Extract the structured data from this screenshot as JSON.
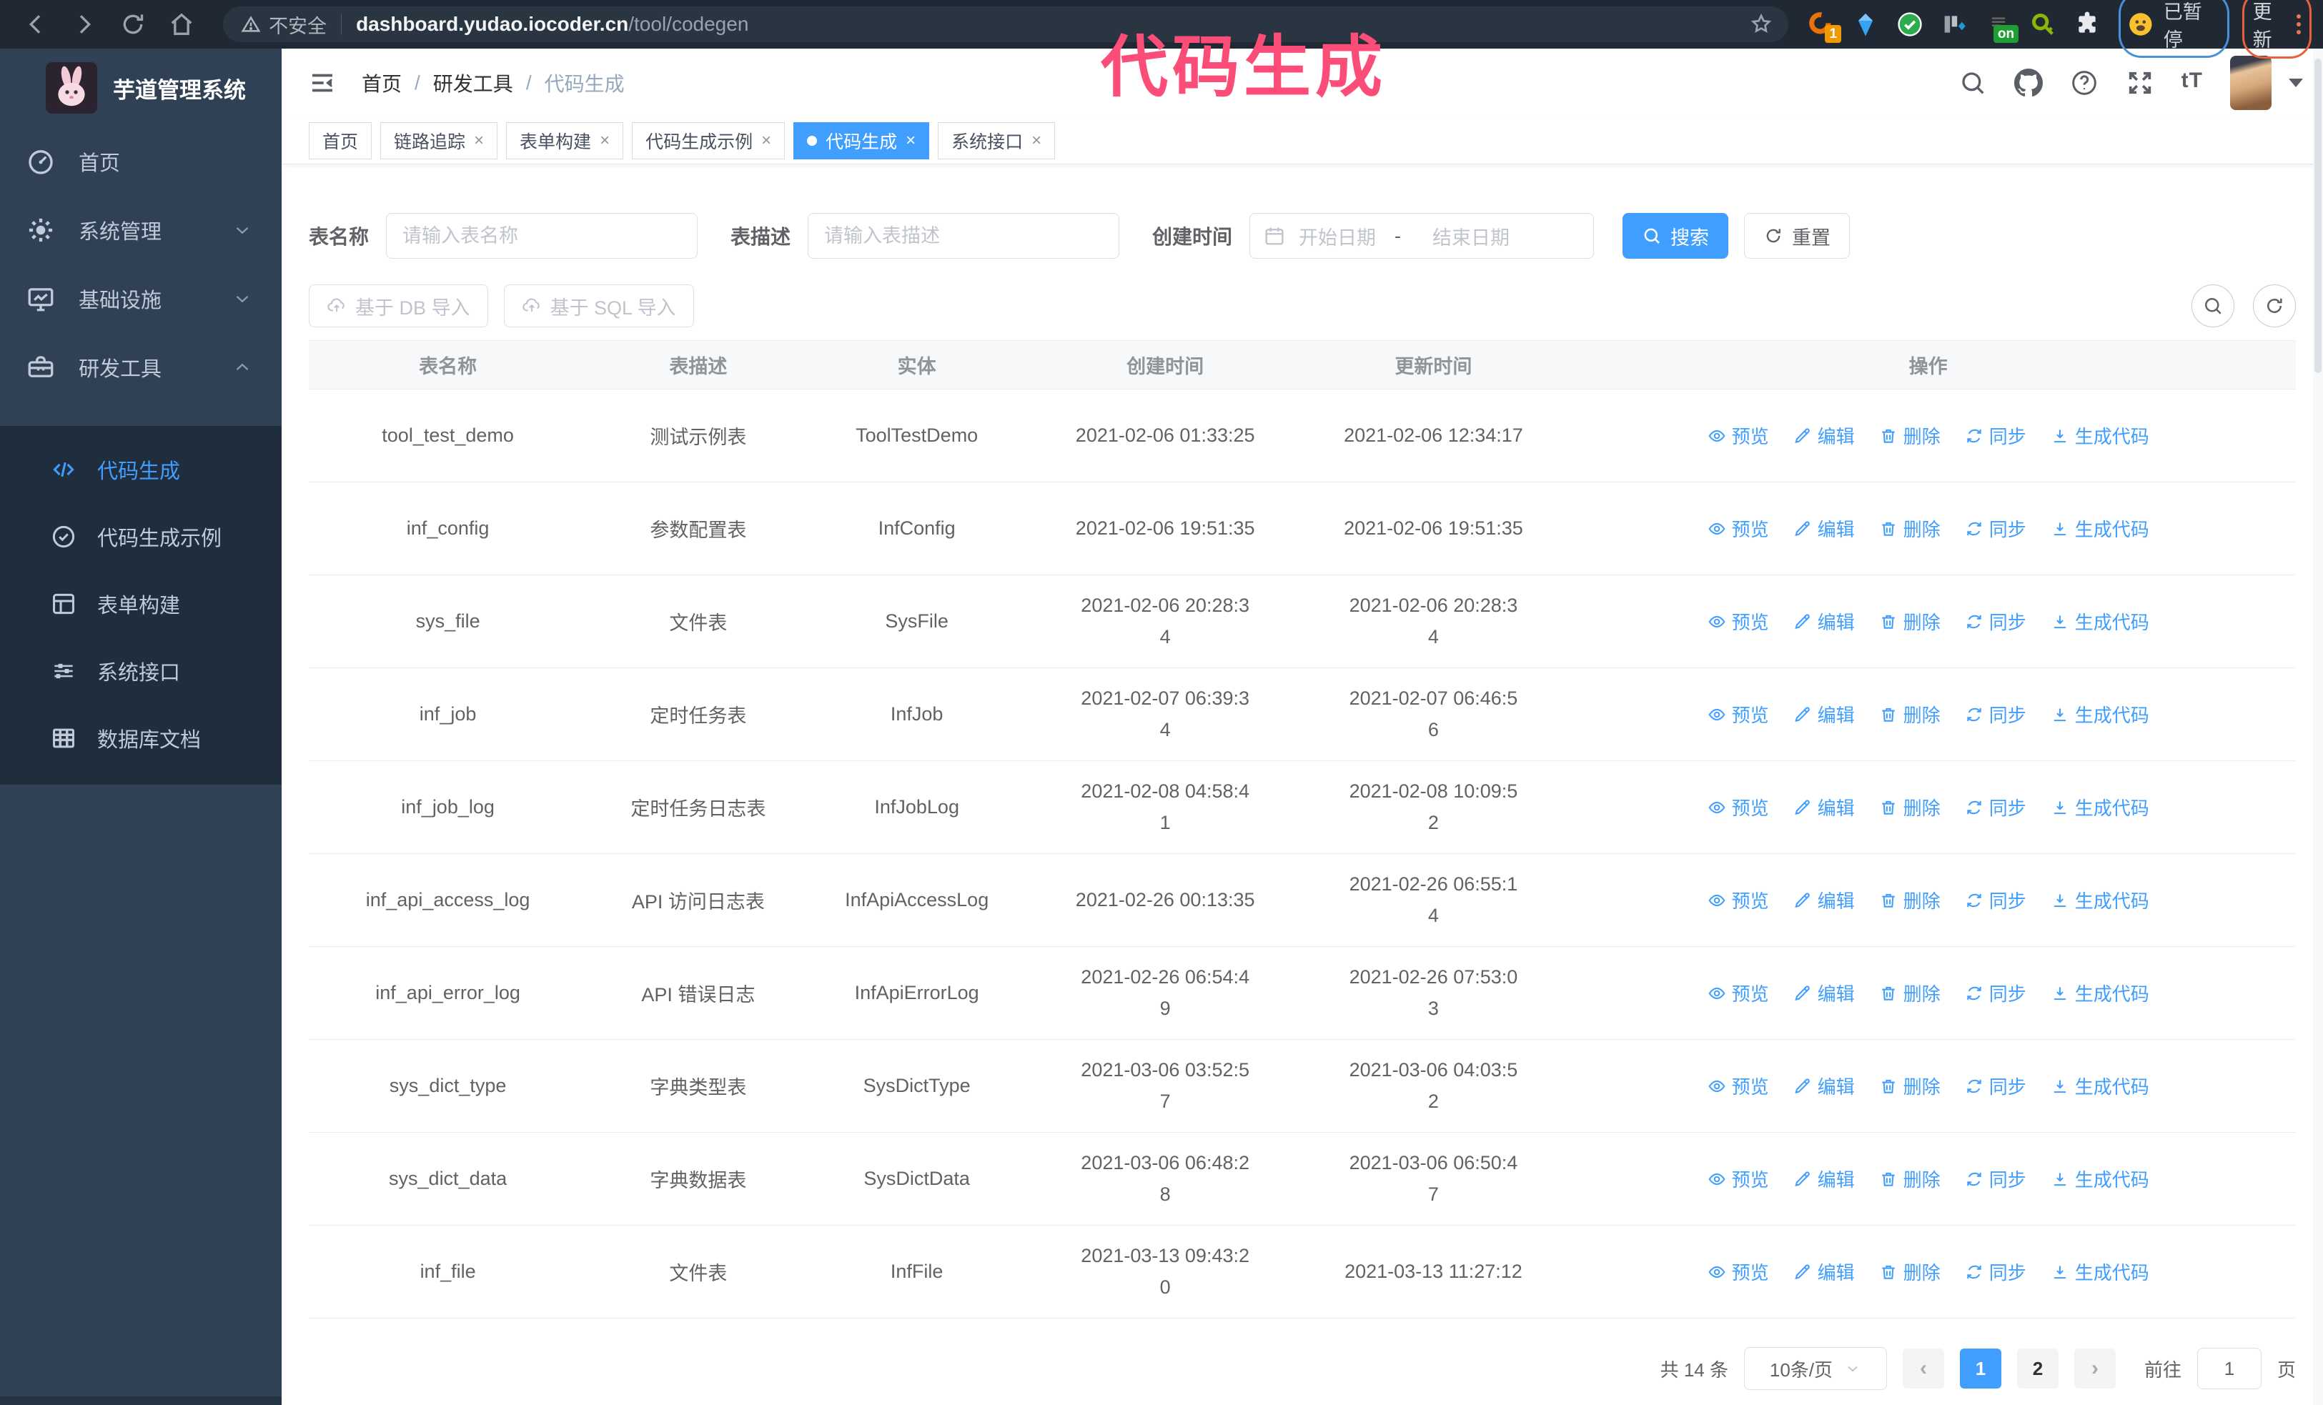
{
  "browser": {
    "security_label": "不安全",
    "url_host": "dashboard.yudao.iocoder.cn",
    "url_path": "/tool/codegen",
    "extension_badge": "1",
    "on_badge": "on",
    "paused_label": "已暂停",
    "update_label": "更新"
  },
  "annotation": {
    "title": "代码生成",
    "color": "#fb4d78"
  },
  "sidebar": {
    "app_title": "芋道管理系统",
    "menu": [
      {
        "key": "home",
        "label": "首页",
        "icon": "dashboard-icon"
      },
      {
        "key": "system",
        "label": "系统管理",
        "icon": "gear-icon",
        "chevron": "down"
      },
      {
        "key": "infra",
        "label": "基础设施",
        "icon": "monitor-icon",
        "chevron": "down"
      },
      {
        "key": "devtools",
        "label": "研发工具",
        "icon": "toolbox-icon",
        "chevron": "up"
      }
    ],
    "submenu": [
      {
        "key": "codegen",
        "label": "代码生成",
        "icon": "code-icon",
        "active": true
      },
      {
        "key": "codegen-demo",
        "label": "代码生成示例",
        "icon": "badge-check-icon",
        "active": false
      },
      {
        "key": "form-builder",
        "label": "表单构建",
        "icon": "form-icon",
        "active": false
      },
      {
        "key": "system-api",
        "label": "系统接口",
        "icon": "sliders-icon",
        "active": false
      },
      {
        "key": "db-doc",
        "label": "数据库文档",
        "icon": "db-table-icon",
        "active": false
      }
    ]
  },
  "breadcrumb": [
    "首页",
    "研发工具",
    "代码生成"
  ],
  "tabs": [
    {
      "key": "home",
      "label": "首页",
      "closable": false,
      "active": false
    },
    {
      "key": "tracing",
      "label": "链路追踪",
      "closable": true,
      "active": false
    },
    {
      "key": "form-builder",
      "label": "表单构建",
      "closable": true,
      "active": false
    },
    {
      "key": "codegen-demo",
      "label": "代码生成示例",
      "closable": true,
      "active": false
    },
    {
      "key": "codegen",
      "label": "代码生成",
      "closable": true,
      "active": true
    },
    {
      "key": "system-api",
      "label": "系统接口",
      "closable": true,
      "active": false
    }
  ],
  "filters": {
    "table_name_label": "表名称",
    "table_name_placeholder": "请输入表名称",
    "table_desc_label": "表描述",
    "table_desc_placeholder": "请输入表描述",
    "created_label": "创建时间",
    "start_placeholder": "开始日期",
    "range_separator": "-",
    "end_placeholder": "结束日期",
    "search_label": "搜索",
    "reset_label": "重置"
  },
  "toolbar": {
    "import_db_label": "基于 DB 导入",
    "import_sql_label": "基于 SQL 导入"
  },
  "table": {
    "headers": [
      "表名称",
      "表描述",
      "实体",
      "创建时间",
      "更新时间",
      "操作"
    ],
    "actions": [
      {
        "key": "preview",
        "label": "预览",
        "icon": "eye-icon"
      },
      {
        "key": "edit",
        "label": "编辑",
        "icon": "edit-icon"
      },
      {
        "key": "delete",
        "label": "删除",
        "icon": "delete-icon"
      },
      {
        "key": "sync",
        "label": "同步",
        "icon": "sync-icon"
      },
      {
        "key": "generate",
        "label": "生成代码",
        "icon": "download-icon"
      }
    ],
    "rows": [
      {
        "name": "tool_test_demo",
        "desc": "测试示例表",
        "entity": "ToolTestDemo",
        "created": "2021-02-06 01:33:25",
        "updated": "2021-02-06 12:34:17"
      },
      {
        "name": "inf_config",
        "desc": "参数配置表",
        "entity": "InfConfig",
        "created": "2021-02-06 19:51:35",
        "updated": "2021-02-06 19:51:35"
      },
      {
        "name": "sys_file",
        "desc": "文件表",
        "entity": "SysFile",
        "created": "2021-02-06 20:28:3\n4",
        "updated": "2021-02-06 20:28:3\n4"
      },
      {
        "name": "inf_job",
        "desc": "定时任务表",
        "entity": "InfJob",
        "created": "2021-02-07 06:39:3\n4",
        "updated": "2021-02-07 06:46:5\n6"
      },
      {
        "name": "inf_job_log",
        "desc": "定时任务日志表",
        "entity": "InfJobLog",
        "created": "2021-02-08 04:58:4\n1",
        "updated": "2021-02-08 10:09:5\n2"
      },
      {
        "name": "inf_api_access_log",
        "desc": "API 访问日志表",
        "entity": "InfApiAccessLog",
        "created": "2021-02-26 00:13:35",
        "updated": "2021-02-26 06:55:1\n4"
      },
      {
        "name": "inf_api_error_log",
        "desc": "API 错误日志",
        "entity": "InfApiErrorLog",
        "created": "2021-02-26 06:54:4\n9",
        "updated": "2021-02-26 07:53:0\n3"
      },
      {
        "name": "sys_dict_type",
        "desc": "字典类型表",
        "entity": "SysDictType",
        "created": "2021-03-06 03:52:5\n7",
        "updated": "2021-03-06 04:03:5\n2"
      },
      {
        "name": "sys_dict_data",
        "desc": "字典数据表",
        "entity": "SysDictData",
        "created": "2021-03-06 06:48:2\n8",
        "updated": "2021-03-06 06:50:4\n7"
      },
      {
        "name": "inf_file",
        "desc": "文件表",
        "entity": "InfFile",
        "created": "2021-03-13 09:43:2\n0",
        "updated": "2021-03-13 11:27:12"
      }
    ]
  },
  "pagination": {
    "total_label": "共 14 条",
    "page_size_label": "10条/页",
    "pages": [
      "1",
      "2"
    ],
    "active_page": "1",
    "goto_label": "前往",
    "goto_value": "1",
    "page_suffix_label": "页"
  },
  "colors": {
    "accent": "#409eff",
    "sidebar_bg": "#304156",
    "submenu_bg": "#1f2d3d",
    "annotation": "#fb4d78"
  }
}
